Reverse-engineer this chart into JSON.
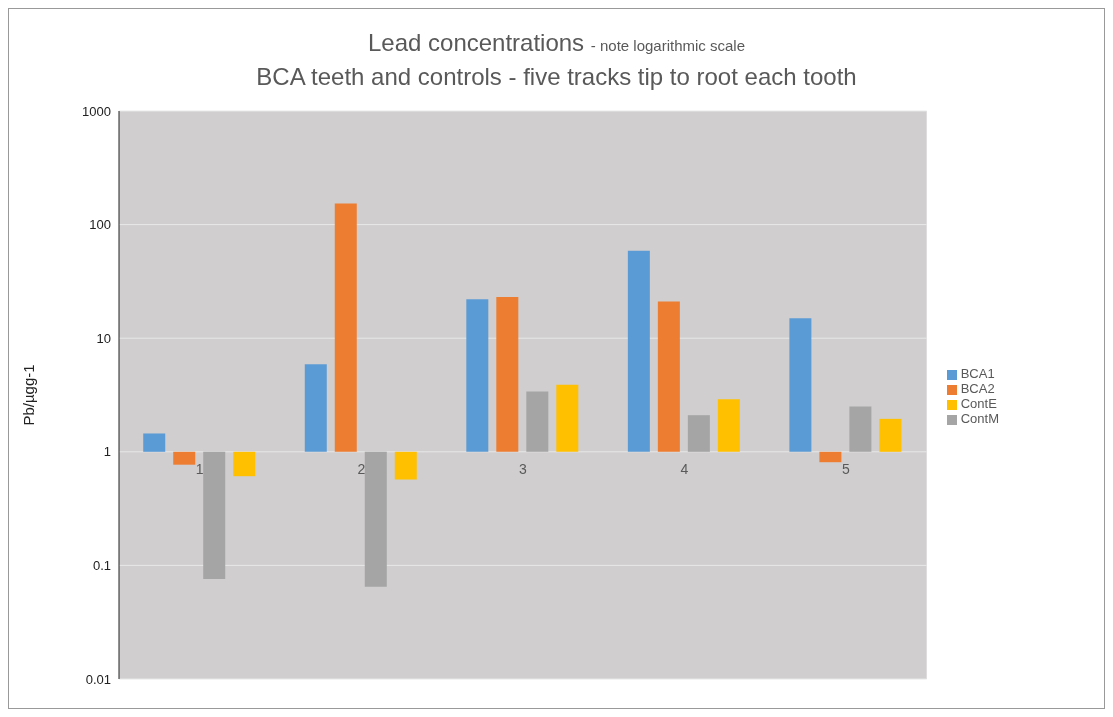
{
  "chart_data": {
    "type": "bar",
    "title": "Lead concentrations",
    "annotations": [
      "- note logarithmic scale"
    ],
    "subtitle": "BCA teeth and controls - five tracks tip to root each tooth",
    "ylabel": "Pb/µgg-1",
    "categories": [
      "1",
      "2",
      "3",
      "4",
      "5"
    ],
    "series": [
      {
        "name": "BCA1",
        "color": "#5b9bd5",
        "base": [
          1,
          1,
          1,
          1,
          1
        ],
        "values": [
          0.45,
          4.9,
          21,
          58,
          14
        ]
      },
      {
        "name": "BCA2",
        "color": "#ed7d31",
        "base": [
          1,
          1,
          1,
          1,
          1
        ],
        "values": [
          -0.23,
          152,
          22,
          20,
          -0.19
        ]
      },
      {
        "name": "ContM",
        "color": "#a5a5a5",
        "base": [
          1,
          1,
          1,
          1,
          1
        ],
        "values": [
          -0.924,
          -0.935,
          2.4,
          1.1,
          1.5
        ]
      },
      {
        "name": "ContE",
        "color": "#ffc000",
        "base": [
          1,
          1,
          1,
          1,
          1
        ],
        "values": [
          -0.39,
          -0.43,
          2.9,
          1.9,
          0.95
        ]
      }
    ],
    "log": "y",
    "ylim": [
      0.01,
      1000
    ],
    "yticks": [
      0.01,
      0.1,
      1,
      10,
      100,
      1000
    ],
    "grid": "y",
    "legend": "right"
  }
}
